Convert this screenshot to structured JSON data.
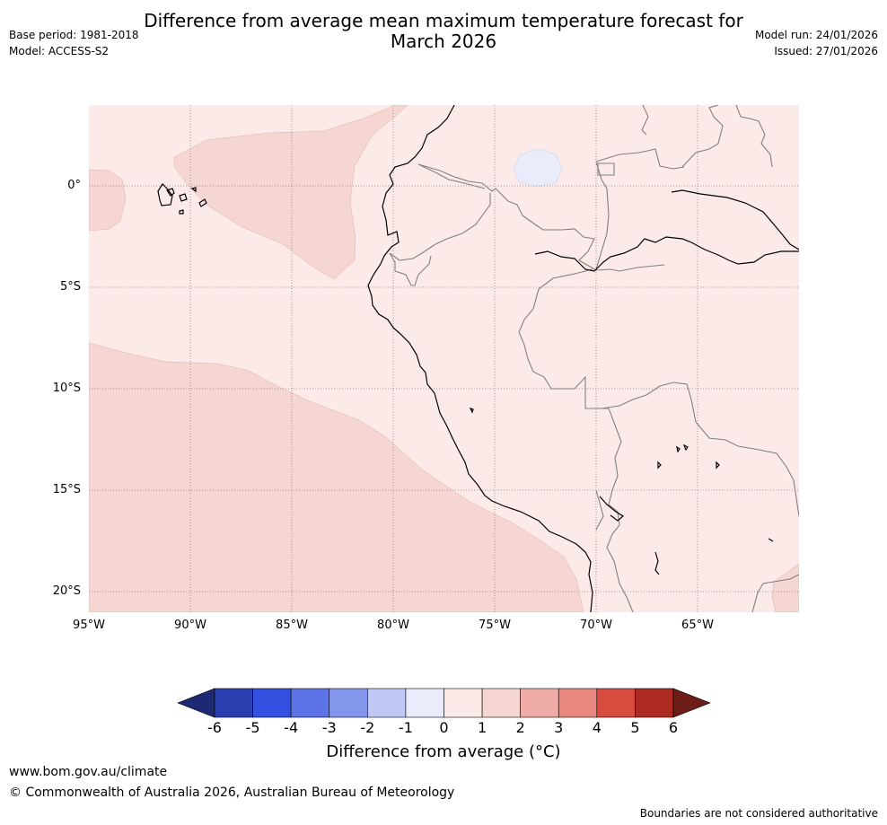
{
  "header": {
    "title_line1": "Difference from average mean maximum temperature forecast for",
    "title_line2": "March 2026",
    "base_period": "Base period: 1981-2018",
    "model": "Model: ACCESS-S2",
    "model_run": "Model run: 24/01/2026",
    "issued": "Issued: 27/01/2026"
  },
  "map": {
    "latitude_labels": [
      "0°",
      "5°S",
      "10°S",
      "15°S",
      "20°S"
    ],
    "longitude_labels": [
      "95°W",
      "90°W",
      "85°W",
      "80°W",
      "75°W",
      "70°W",
      "65°W"
    ],
    "fill_colors": {
      "anomaly_0_to_1": "#fbeae8",
      "anomaly_1_to_2": "#f5d6d3",
      "anomaly_minus1_to_0": "#e8ecfb",
      "coastline": "#000000",
      "border": "#808080"
    }
  },
  "colorbar": {
    "ticks": [
      "-6",
      "-5",
      "-4",
      "-3",
      "-2",
      "-1",
      "0",
      "1",
      "2",
      "3",
      "4",
      "5",
      "6"
    ],
    "low_extend_color": "#1d2a73",
    "high_extend_color": "#6e1c17",
    "segment_colors": [
      "#2a3eb0",
      "#3450e0",
      "#5c74e8",
      "#8495ec",
      "#c0c8f5",
      "#e8ecfb",
      "#fbeae8",
      "#f5d6d3",
      "#efaba5",
      "#e7877e",
      "#d94c40",
      "#ad2a22"
    ],
    "label": "Difference from average (°C)"
  },
  "footer": {
    "website": "www.bom.gov.au/climate",
    "copyright": "© Commonwealth of Australia 2026, Australian Bureau of Meteorology",
    "disclaimer": "Boundaries are not considered authoritative"
  }
}
